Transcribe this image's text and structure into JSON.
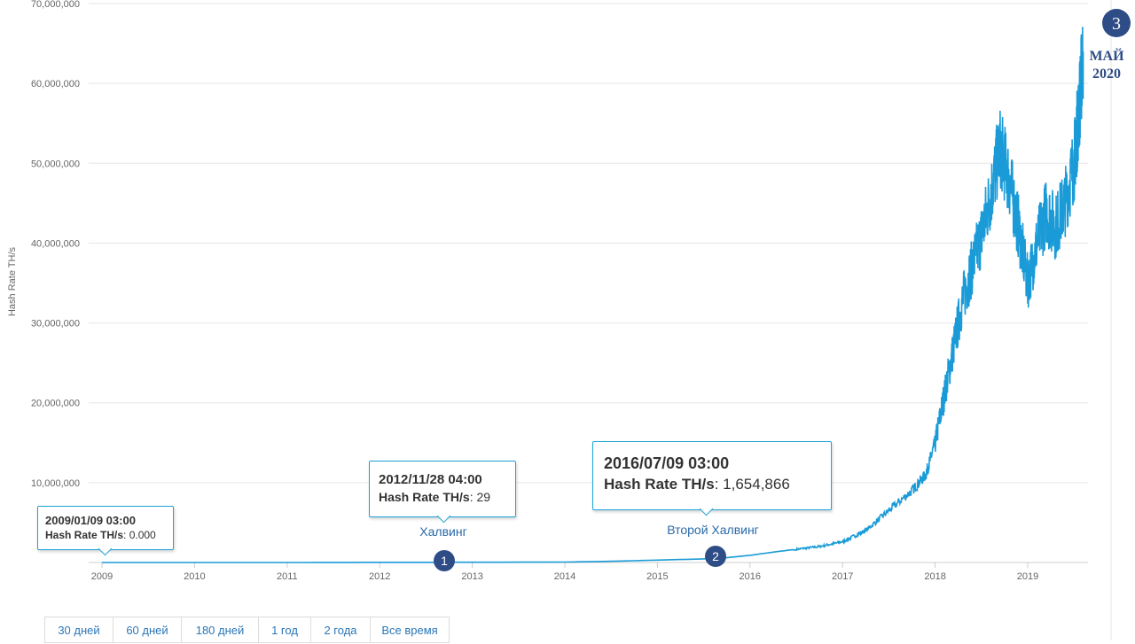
{
  "chart_data": {
    "type": "line",
    "title": "",
    "xlabel": "",
    "ylabel": "Hash Rate TH/s",
    "x_ticks": [
      "2009",
      "2010",
      "2011",
      "2012",
      "2013",
      "2014",
      "2015",
      "2016",
      "2017",
      "2018",
      "2019"
    ],
    "y_ticks": [
      "10,000,000",
      "20,000,000",
      "30,000,000",
      "40,000,000",
      "50,000,000",
      "60,000,000",
      "70,000,000"
    ],
    "xlim": [
      2009.0,
      2019.65
    ],
    "ylim": [
      0,
      70000000
    ],
    "grid": true,
    "color": "#1a9bd7",
    "series": [
      {
        "x": [
          2009.0,
          2010.0,
          2011.0,
          2012.0,
          2013.0,
          2014.0,
          2014.5,
          2015.0,
          2015.5,
          2015.75,
          2016.0,
          2016.25,
          2016.5,
          2016.75,
          2017.0,
          2017.25,
          2017.5,
          2017.75,
          2017.9,
          2018.0,
          2018.1,
          2018.2,
          2018.3,
          2018.4,
          2018.5,
          2018.6,
          2018.7,
          2018.8,
          2018.9,
          2019.0,
          2019.1,
          2019.2,
          2019.3,
          2019.4,
          2019.5,
          2019.55,
          2019.6
        ],
        "y": [
          0,
          10,
          1000,
          20000,
          30000,
          50000,
          150000,
          300000,
          450000,
          600000,
          900000,
          1300000,
          1654866,
          2000000,
          2600000,
          4000000,
          6500000,
          9000000,
          11000000,
          15000000,
          21000000,
          27000000,
          33000000,
          37000000,
          41000000,
          46000000,
          52000000,
          48000000,
          42000000,
          35000000,
          40000000,
          44000000,
          42000000,
          45000000,
          50000000,
          56000000,
          64000000
        ]
      }
    ],
    "annotations": [
      {
        "label": "Халвинг",
        "marker": "1"
      },
      {
        "label": "Второй Халвинг",
        "marker": "2"
      },
      {
        "label": "МАЙ",
        "sub": "2020",
        "marker": "3"
      }
    ]
  },
  "tooltips": [
    {
      "date": "2009/01/09 03:00",
      "key": "Hash Rate TH/s",
      "value": "0.000"
    },
    {
      "date": "2012/11/28 04:00",
      "key": "Hash Rate TH/s",
      "value": "29"
    },
    {
      "date": "2016/07/09 03:00",
      "key": "Hash Rate TH/s",
      "value": "1,654,866"
    }
  ],
  "range_buttons": [
    "30 дней",
    "60 дней",
    "180 дней",
    "1 год",
    "2 года",
    "Все время"
  ]
}
